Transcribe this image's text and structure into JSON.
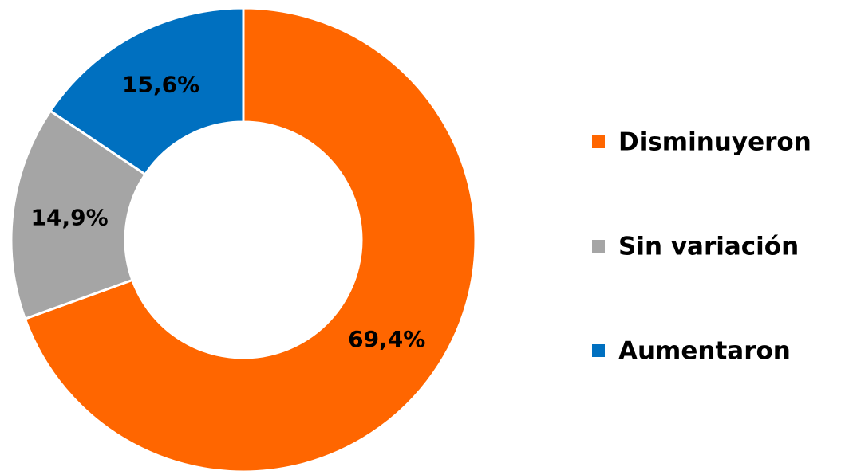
{
  "chart_data": {
    "type": "donut",
    "categories": [
      "Disminuyeron",
      "Sin variación",
      "Aumentaron"
    ],
    "values": [
      69.4,
      14.9,
      15.6
    ],
    "value_labels": [
      "69,4%",
      "14,9%",
      "15,6%"
    ],
    "colors": [
      "#ff6600",
      "#a5a5a5",
      "#0070c0"
    ],
    "legend": "right"
  }
}
